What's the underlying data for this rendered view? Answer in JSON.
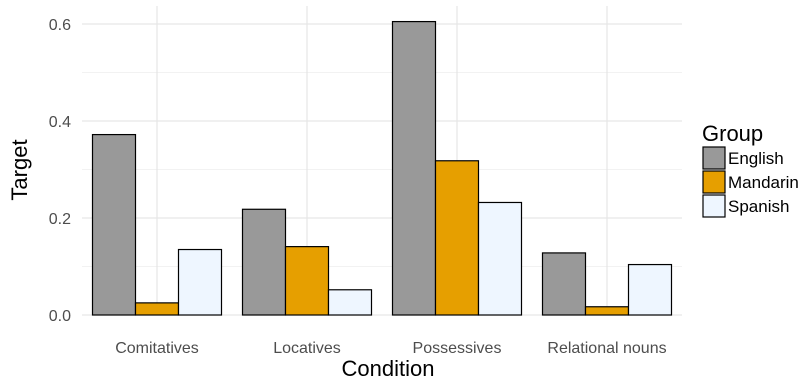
{
  "chart_data": {
    "type": "bar",
    "xlabel": "Condition",
    "ylabel": "Target",
    "categories": [
      "Comitatives",
      "Locatives",
      "Possessives",
      "Relational nouns"
    ],
    "ylim": [
      0,
      0.64
    ],
    "yticks": [
      0.0,
      0.2,
      0.4,
      0.6
    ],
    "ytick_labels": [
      "0.0",
      "0.2",
      "0.4",
      "0.6"
    ],
    "grid": true,
    "legend": {
      "title": "Group",
      "placement": "right"
    },
    "series": [
      {
        "name": "English",
        "color": "#999999",
        "values": [
          0.372,
          0.218,
          0.605,
          0.128
        ]
      },
      {
        "name": "Mandarin",
        "color": "#E69F00",
        "values": [
          0.025,
          0.141,
          0.318,
          0.017
        ]
      },
      {
        "name": "Spanish",
        "color": "#EEF6FF",
        "values": [
          0.135,
          0.052,
          0.232,
          0.104
        ]
      }
    ]
  }
}
